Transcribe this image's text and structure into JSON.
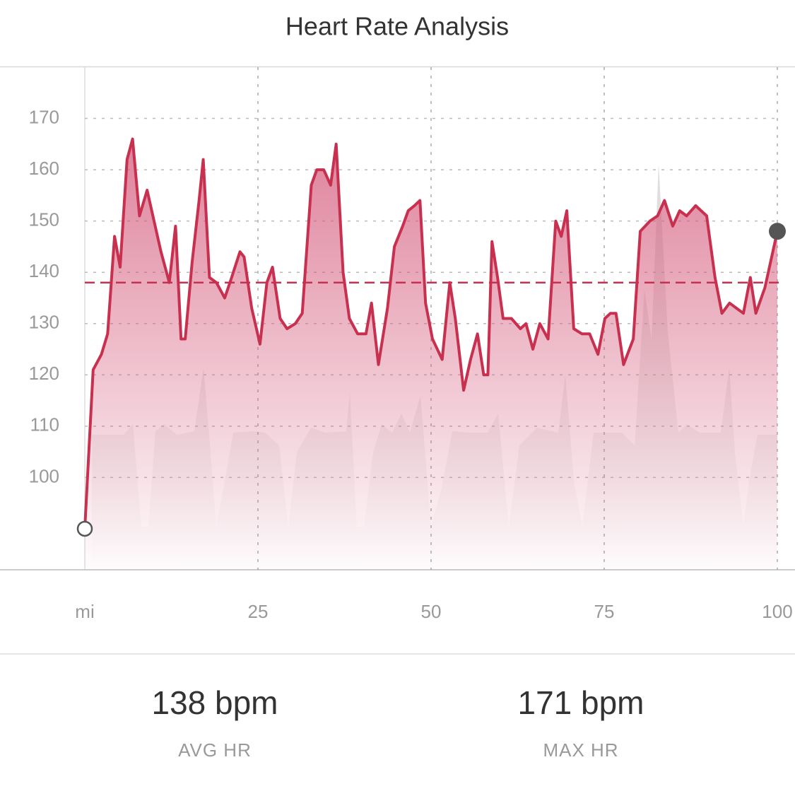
{
  "chart_data": {
    "type": "line",
    "title": "Heart Rate Analysis",
    "x": [
      0,
      1.2,
      2.4,
      3.3,
      4.3,
      5.1,
      6.1,
      6.9,
      7.9,
      9.0,
      10,
      11,
      12.2,
      13.1,
      13.9,
      14.5,
      15.5,
      16.5,
      17.1,
      18,
      19,
      20.2,
      21.2,
      22.4,
      23,
      24.1,
      25.3,
      26.3,
      27.1,
      28.2,
      29.2,
      30.4,
      31.4,
      32.7,
      33.5,
      34.5,
      35.5,
      36.3,
      37.3,
      38.2,
      39.4,
      40.6,
      41.4,
      42.4,
      43.7,
      44.7,
      45.9,
      46.7,
      47.6,
      48.4,
      49.2,
      50.2,
      51.6,
      52.7,
      53.5,
      54.7,
      55.7,
      56.7,
      57.6,
      58.2,
      58.8,
      59.6,
      60.4,
      61.6,
      62.9,
      63.7,
      64.7,
      65.7,
      66.9,
      68,
      68.8,
      69.6,
      70.6,
      71.8,
      72.9,
      74.1,
      75.1,
      75.9,
      76.7,
      77.8,
      79.2,
      80.2,
      81.6,
      82.7,
      83.7,
      84.9,
      85.9,
      86.9,
      88.2,
      89.8,
      91,
      92,
      93.1,
      94.1,
      95.1,
      96.1,
      96.9,
      98.2,
      100
    ],
    "series": [
      {
        "color": "#c8304f",
        "values": [
          90,
          121,
          124,
          128,
          147,
          141,
          162,
          166,
          151,
          156,
          150,
          144,
          138,
          149,
          127,
          127,
          142,
          154,
          162,
          139,
          138,
          135,
          139,
          144,
          143,
          133,
          126,
          138,
          141,
          131,
          129,
          130,
          132,
          157,
          160,
          160,
          157,
          165,
          140,
          131,
          128,
          128,
          134,
          122,
          133,
          145,
          149,
          152,
          153,
          154,
          134,
          127,
          123,
          138,
          131,
          117,
          123,
          128,
          120,
          120,
          146,
          139,
          131,
          131,
          129,
          130,
          125,
          130,
          127,
          150,
          147,
          152,
          129,
          128,
          128,
          124,
          131,
          132,
          132,
          122,
          127,
          148,
          150,
          151,
          154,
          149,
          152,
          151,
          153,
          151,
          139,
          132,
          134,
          133,
          132,
          139,
          132,
          137,
          148
        ]
      }
    ],
    "average": 138,
    "xlim": [
      0,
      100
    ],
    "xticks": [
      {
        "value": 0,
        "label": "mi"
      },
      25,
      50,
      75,
      100
    ],
    "ylim": [
      82,
      180
    ],
    "yticks": [
      100,
      110,
      120,
      130,
      140,
      150,
      160,
      170
    ],
    "grid": true
  },
  "stats": [
    {
      "value": "138 bpm",
      "label": "AVG HR"
    },
    {
      "value": "171 bpm",
      "label": "MAX HR"
    }
  ]
}
